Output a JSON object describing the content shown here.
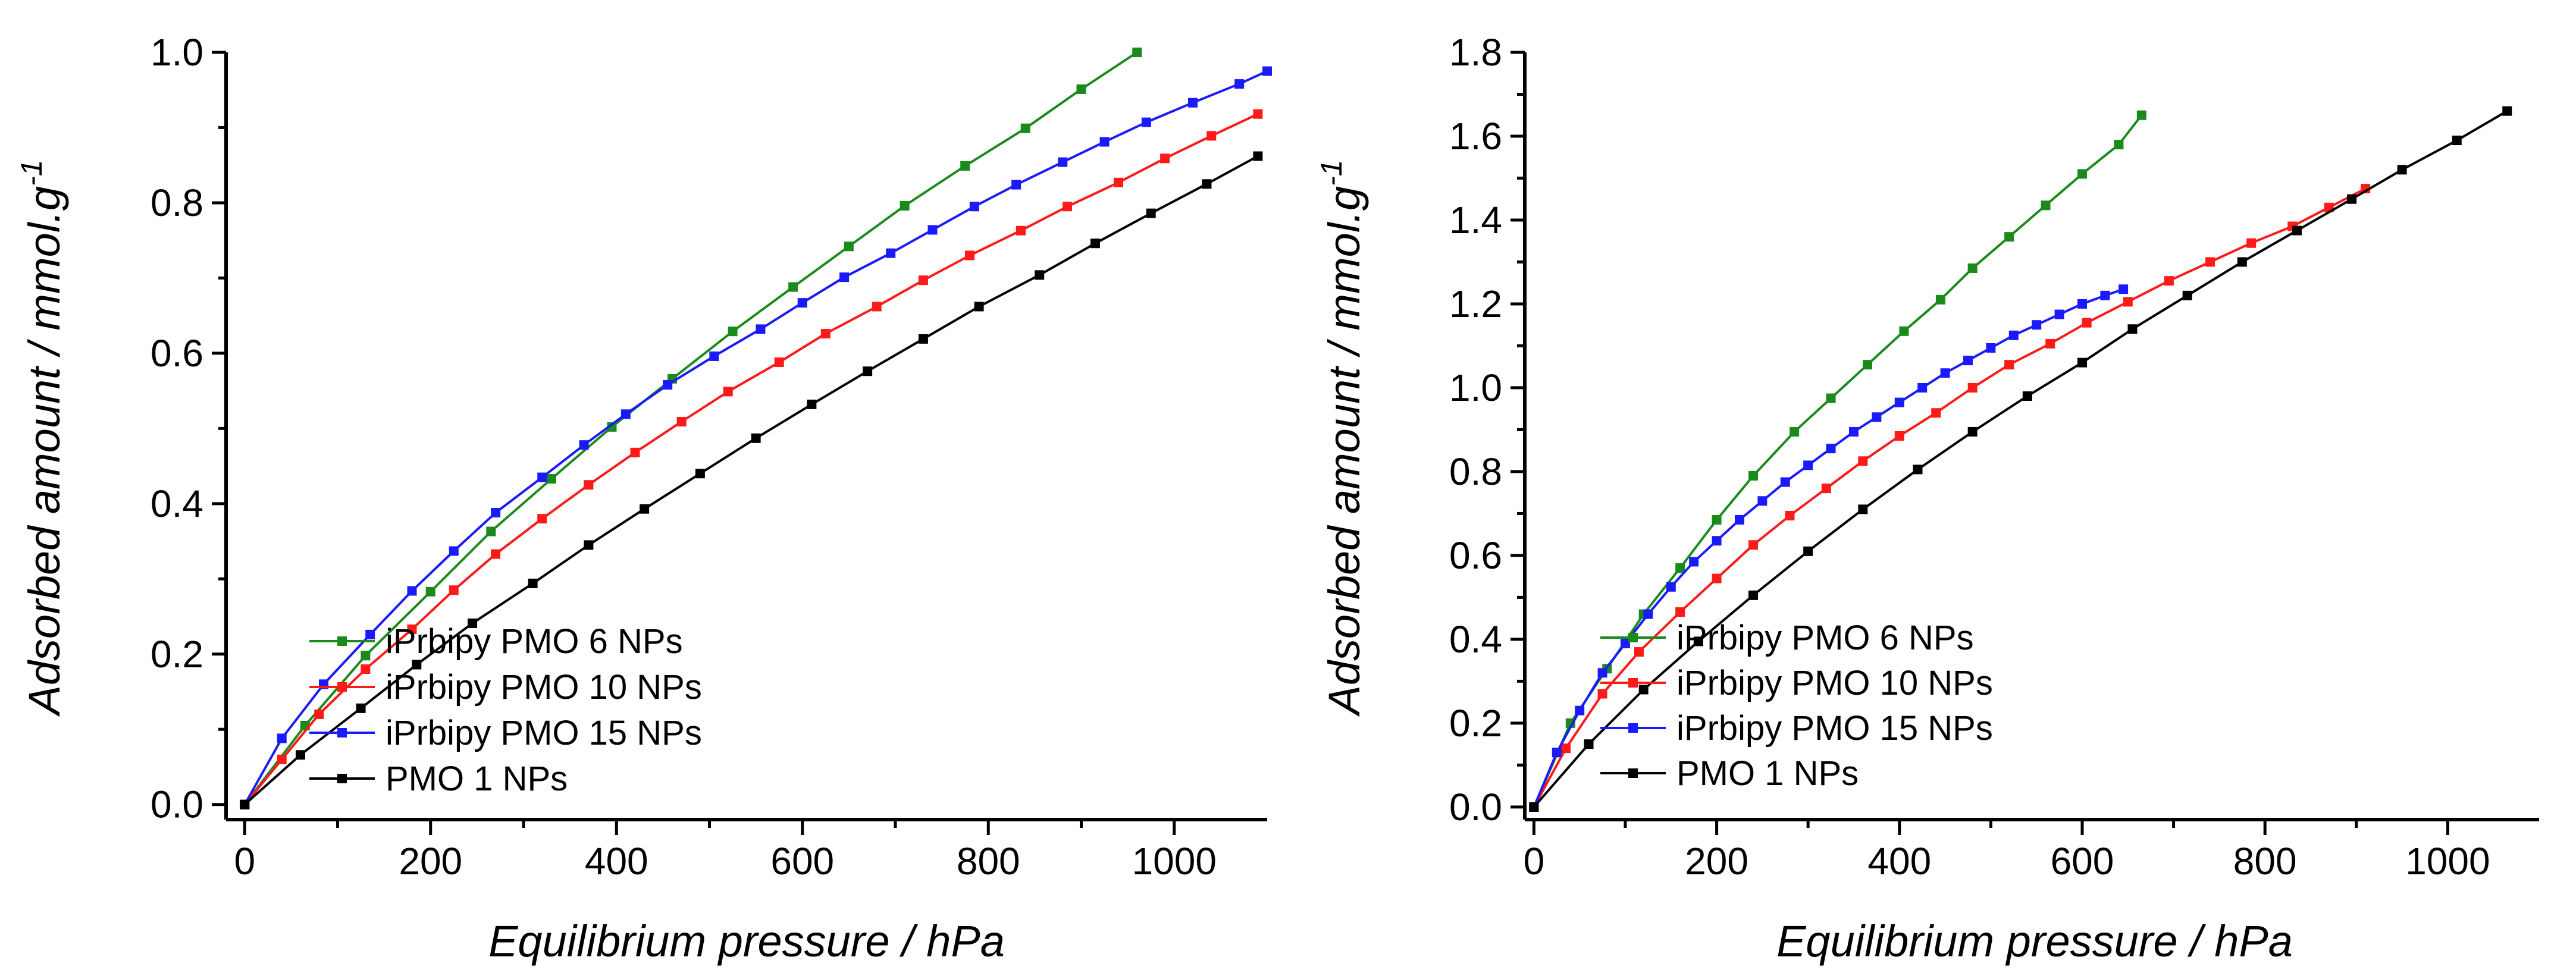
{
  "chart_data": [
    {
      "type": "line",
      "xlabel": "Equilibrium pressure / hPa",
      "ylabel": "Adsorbed amount / mmol.g",
      "ylabel_superscript": "-1",
      "xlim": [
        -20,
        1100
      ],
      "ylim": [
        -0.02,
        1.0
      ],
      "xticks": [
        0,
        200,
        400,
        600,
        800,
        1000
      ],
      "yticks": [
        0.0,
        0.2,
        0.4,
        0.6,
        0.8,
        1.0
      ],
      "xtick_labels": [
        "0",
        "200",
        "400",
        "600",
        "800",
        "1000"
      ],
      "ytick_labels": [
        "0.0",
        "0.2",
        "0.4",
        "0.6",
        "0.8",
        "1.0"
      ],
      "legend_position": "bottom-center",
      "series": [
        {
          "name": "iPrbipy PMO 6 NPs",
          "color": "#1a8a1a",
          "x": [
            0,
            65,
            130,
            200,
            265,
            330,
            395,
            460,
            525,
            590,
            650,
            710,
            775,
            840,
            900,
            960
          ],
          "y": [
            0.0,
            0.105,
            0.198,
            0.283,
            0.363,
            0.433,
            0.502,
            0.566,
            0.629,
            0.688,
            0.742,
            0.796,
            0.849,
            0.899,
            0.951,
            1.0
          ]
        },
        {
          "name": "iPrbipy PMO 10 NPs",
          "color": "#ff1a1a",
          "x": [
            0,
            40,
            80,
            130,
            180,
            225,
            270,
            320,
            370,
            420,
            470,
            520,
            575,
            625,
            680,
            730,
            780,
            835,
            885,
            940,
            990,
            1040,
            1090
          ],
          "y": [
            0.0,
            0.06,
            0.12,
            0.18,
            0.233,
            0.285,
            0.333,
            0.38,
            0.425,
            0.468,
            0.509,
            0.549,
            0.588,
            0.626,
            0.662,
            0.697,
            0.73,
            0.763,
            0.795,
            0.827,
            0.859,
            0.889,
            0.918
          ]
        },
        {
          "name": "iPrbipy PMO 15 NPs",
          "color": "#1a1aff",
          "x": [
            0,
            40,
            85,
            135,
            180,
            225,
            270,
            320,
            365,
            410,
            455,
            505,
            555,
            600,
            645,
            695,
            740,
            785,
            830,
            880,
            925,
            970,
            1020,
            1070,
            1100
          ],
          "y": [
            0.0,
            0.088,
            0.16,
            0.226,
            0.284,
            0.337,
            0.388,
            0.435,
            0.478,
            0.519,
            0.558,
            0.596,
            0.632,
            0.667,
            0.701,
            0.733,
            0.764,
            0.795,
            0.824,
            0.854,
            0.881,
            0.907,
            0.933,
            0.958,
            0.975
          ]
        },
        {
          "name": "PMO 1 NPs",
          "color": "#000000",
          "x": [
            0,
            60,
            125,
            185,
            245,
            310,
            370,
            430,
            490,
            550,
            610,
            670,
            730,
            790,
            855,
            915,
            975,
            1035,
            1090
          ],
          "y": [
            0.0,
            0.066,
            0.128,
            0.186,
            0.241,
            0.294,
            0.345,
            0.393,
            0.44,
            0.487,
            0.532,
            0.576,
            0.619,
            0.662,
            0.704,
            0.746,
            0.786,
            0.825,
            0.862
          ]
        }
      ]
    },
    {
      "type": "line",
      "xlabel": "Equilibrium pressure / hPa",
      "ylabel": "Adsorbed amount / mmol.g",
      "ylabel_superscript": "-1",
      "xlim": [
        -10,
        1100
      ],
      "ylim": [
        -0.03,
        1.8
      ],
      "xticks": [
        0,
        200,
        400,
        600,
        800,
        1000
      ],
      "yticks": [
        0.0,
        0.2,
        0.4,
        0.6,
        0.8,
        1.0,
        1.2,
        1.4,
        1.6,
        1.8
      ],
      "xtick_labels": [
        "0",
        "200",
        "400",
        "600",
        "800",
        "1000"
      ],
      "ytick_labels": [
        "0.0",
        "0.2",
        "0.4",
        "0.6",
        "0.8",
        "1.0",
        "1.2",
        "1.4",
        "1.6",
        "1.8"
      ],
      "legend_position": "bottom-center",
      "series": [
        {
          "name": "iPrbipy PMO 6 NPs",
          "color": "#1a8a1a",
          "x": [
            0,
            40,
            80,
            120,
            160,
            200,
            240,
            285,
            325,
            365,
            405,
            445,
            480,
            520,
            560,
            600,
            640,
            665
          ],
          "y": [
            0.0,
            0.2,
            0.33,
            0.46,
            0.57,
            0.685,
            0.79,
            0.895,
            0.975,
            1.055,
            1.135,
            1.21,
            1.285,
            1.36,
            1.435,
            1.51,
            1.58,
            1.65
          ]
        },
        {
          "name": "iPrbipy PMO 10 NPs",
          "color": "#ff1a1a",
          "x": [
            0,
            35,
            75,
            115,
            160,
            200,
            240,
            280,
            320,
            360,
            400,
            440,
            480,
            520,
            565,
            605,
            650,
            695,
            740,
            785,
            830,
            870,
            910
          ],
          "y": [
            0.0,
            0.14,
            0.27,
            0.37,
            0.465,
            0.545,
            0.625,
            0.695,
            0.76,
            0.825,
            0.885,
            0.94,
            1.0,
            1.055,
            1.105,
            1.155,
            1.205,
            1.255,
            1.3,
            1.345,
            1.385,
            1.43,
            1.475
          ]
        },
        {
          "name": "iPrbipy PMO 15 NPs",
          "color": "#1a1aff",
          "x": [
            0,
            25,
            50,
            75,
            100,
            125,
            150,
            175,
            200,
            225,
            250,
            275,
            300,
            325,
            350,
            375,
            400,
            425,
            450,
            475,
            500,
            525,
            550,
            575,
            600,
            625,
            645
          ],
          "y": [
            0.0,
            0.13,
            0.23,
            0.32,
            0.39,
            0.46,
            0.525,
            0.585,
            0.635,
            0.685,
            0.73,
            0.775,
            0.815,
            0.855,
            0.895,
            0.93,
            0.965,
            1.0,
            1.035,
            1.065,
            1.095,
            1.125,
            1.15,
            1.175,
            1.2,
            1.22,
            1.235
          ]
        },
        {
          "name": "PMO 1 NPs",
          "color": "#000000",
          "x": [
            0,
            60,
            120,
            180,
            240,
            300,
            360,
            420,
            480,
            540,
            600,
            655,
            715,
            775,
            835,
            895,
            950,
            1010,
            1065
          ],
          "y": [
            0.0,
            0.15,
            0.28,
            0.395,
            0.505,
            0.61,
            0.71,
            0.805,
            0.895,
            0.98,
            1.06,
            1.14,
            1.22,
            1.3,
            1.375,
            1.45,
            1.52,
            1.59,
            1.66
          ]
        }
      ]
    }
  ]
}
